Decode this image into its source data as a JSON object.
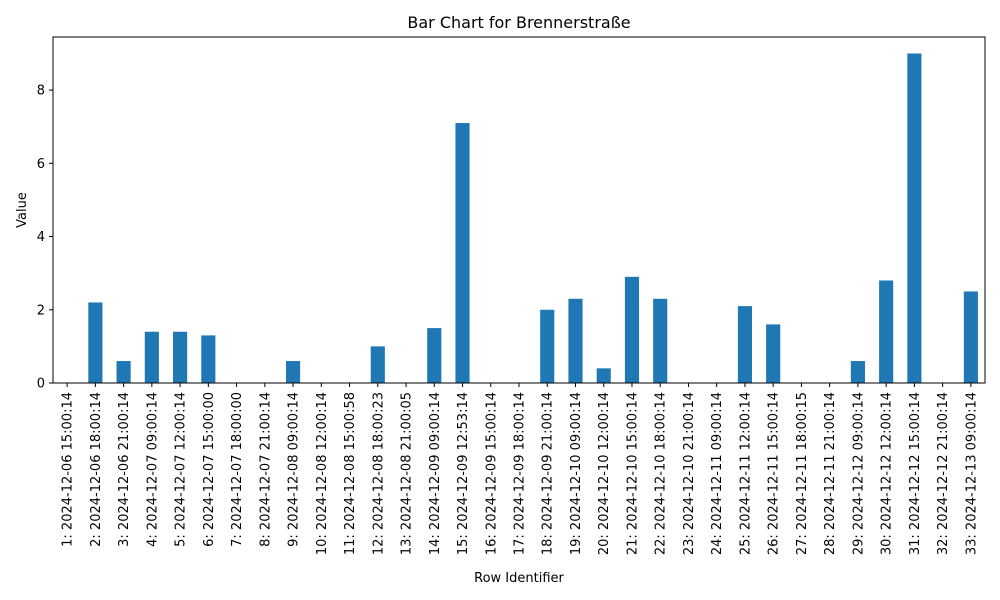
{
  "chart_data": {
    "type": "bar",
    "title": "Bar Chart for Brennerstraße",
    "xlabel": "Row Identifier",
    "ylabel": "Value",
    "ylim": [
      0,
      9.45
    ],
    "yticks": [
      0,
      2,
      4,
      6,
      8
    ],
    "bar_color": "#1f77b4",
    "grid": false,
    "categories": [
      "1: 2024-12-06 15:00:14",
      "2: 2024-12-06 18:00:14",
      "3: 2024-12-06 21:00:14",
      "4: 2024-12-07 09:00:14",
      "5: 2024-12-07 12:00:14",
      "6: 2024-12-07 15:00:00",
      "7: 2024-12-07 18:00:00",
      "8: 2024-12-07 21:00:14",
      "9: 2024-12-08 09:00:14",
      "10: 2024-12-08 12:00:14",
      "11: 2024-12-08 15:00:58",
      "12: 2024-12-08 18:00:23",
      "13: 2024-12-08 21:00:05",
      "14: 2024-12-09 09:00:14",
      "15: 2024-12-09 12:53:14",
      "16: 2024-12-09 15:00:14",
      "17: 2024-12-09 18:00:14",
      "18: 2024-12-09 21:00:14",
      "19: 2024-12-10 09:00:14",
      "20: 2024-12-10 12:00:14",
      "21: 2024-12-10 15:00:14",
      "22: 2024-12-10 18:00:14",
      "23: 2024-12-10 21:00:14",
      "24: 2024-12-11 09:00:14",
      "25: 2024-12-11 12:00:14",
      "26: 2024-12-11 15:00:14",
      "27: 2024-12-11 18:00:15",
      "28: 2024-12-11 21:00:14",
      "29: 2024-12-12 09:00:14",
      "30: 2024-12-12 12:00:14",
      "31: 2024-12-12 15:00:14",
      "32: 2024-12-12 21:00:14",
      "33: 2024-12-13 09:00:14"
    ],
    "values": [
      0,
      2.2,
      0.6,
      1.4,
      1.4,
      1.3,
      0,
      0,
      0.6,
      0,
      0,
      1.0,
      0,
      1.5,
      7.1,
      0,
      0,
      2.0,
      2.3,
      0.4,
      2.9,
      2.3,
      0,
      0,
      2.1,
      1.6,
      0,
      0,
      0.6,
      2.8,
      9.0,
      0,
      2.5
    ]
  }
}
